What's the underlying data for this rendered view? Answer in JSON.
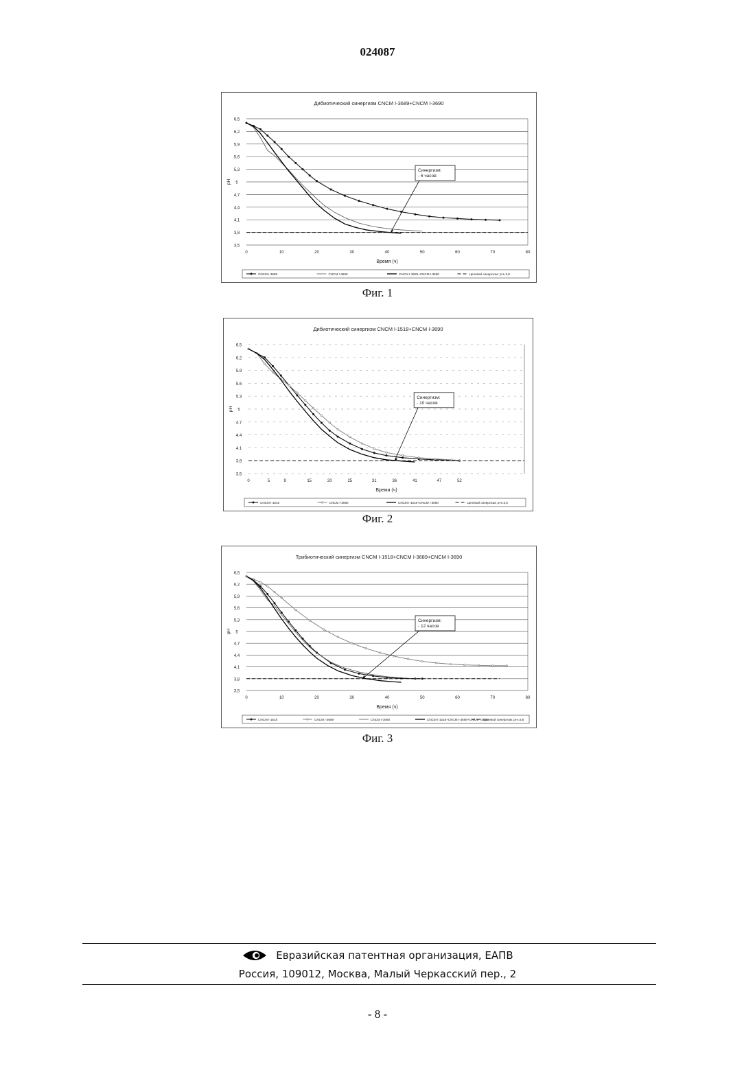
{
  "document_number": "024087",
  "figures": [
    {
      "caption": "Фиг. 1"
    },
    {
      "caption": "Фиг. 2"
    },
    {
      "caption": "Фиг. 3"
    }
  ],
  "chart_data": [
    {
      "type": "line",
      "title": "Дибиотический синергизм CNCM I-3689+CNCM I-3690",
      "xlabel": "Время (ч)",
      "ylabel": "pH",
      "xlim": [
        0,
        80
      ],
      "ylim": [
        3.5,
        6.5
      ],
      "x_ticks": [
        "0",
        "10",
        "20",
        "30",
        "40",
        "50",
        "60",
        "70",
        "80"
      ],
      "y_ticks": [
        "3,5",
        "3,8",
        "4,1",
        "4,4",
        "4,7",
        "5",
        "5,3",
        "5,6",
        "5,9",
        "6,2",
        "6,5"
      ],
      "grid": true,
      "legend_position": "bottom",
      "annotation": {
        "text": [
          "Синергизм:",
          "- 6 часов"
        ],
        "target": {
          "x": 41,
          "y": 3.8
        }
      },
      "series": [
        {
          "name": "CNCM I-3689",
          "style": "solid-markers",
          "x": [
            0,
            2,
            4,
            6,
            8,
            10,
            12,
            14,
            16,
            18,
            20,
            24,
            28,
            32,
            36,
            40,
            44,
            48,
            52,
            56,
            60,
            64,
            68,
            72
          ],
          "y": [
            6.4,
            6.33,
            6.25,
            6.1,
            5.95,
            5.78,
            5.6,
            5.45,
            5.3,
            5.15,
            5.02,
            4.82,
            4.67,
            4.55,
            4.45,
            4.36,
            4.29,
            4.23,
            4.18,
            4.15,
            4.13,
            4.11,
            4.1,
            4.09
          ]
        },
        {
          "name": "CNCM I-3690",
          "style": "thin",
          "x": [
            0,
            2,
            4,
            6,
            8,
            10,
            12,
            14,
            16,
            18,
            20,
            22,
            25,
            28,
            32,
            36,
            40,
            44,
            48,
            50
          ],
          "y": [
            6.4,
            6.3,
            6.05,
            5.75,
            5.62,
            5.45,
            5.28,
            5.1,
            4.92,
            4.76,
            4.6,
            4.45,
            4.28,
            4.15,
            4.02,
            3.94,
            3.89,
            3.86,
            3.84,
            3.83
          ]
        },
        {
          "name": "CNCM I-3689+CNCM I-3690",
          "style": "thick",
          "x": [
            0,
            2,
            4,
            6,
            8,
            10,
            12,
            14,
            16,
            18,
            20,
            22,
            25,
            28,
            31,
            34,
            38,
            42,
            44
          ],
          "y": [
            6.4,
            6.32,
            6.15,
            5.93,
            5.7,
            5.48,
            5.26,
            5.06,
            4.86,
            4.66,
            4.48,
            4.33,
            4.14,
            4.0,
            3.92,
            3.86,
            3.82,
            3.79,
            3.78
          ]
        },
        {
          "name": "Целевой синергизм: pH=3,8",
          "style": "dashed",
          "x": [
            0,
            80
          ],
          "y": [
            3.8,
            3.8
          ]
        }
      ]
    },
    {
      "type": "line",
      "title": "Дибиотический синергизм CNCM I-1518+CNCM I-3690",
      "xlabel": "Время (ч)",
      "ylabel": "pH",
      "xlim": [
        0,
        68
      ],
      "ylim": [
        3.5,
        6.5
      ],
      "x_ticks": [
        "0",
        "5",
        "9",
        "15",
        "20",
        "25",
        "31",
        "36",
        "41",
        "47",
        "52"
      ],
      "y_ticks": [
        "3.5",
        "3.8",
        "4.1",
        "4.4",
        "4.7",
        "5",
        "5.3",
        "5.6",
        "5.9",
        "6.2",
        "6.5"
      ],
      "grid": true,
      "legend_position": "bottom",
      "annotation": {
        "text": [
          "Синергизм:",
          "- 10 часов"
        ],
        "target": {
          "x": 36,
          "y": 3.8
        }
      },
      "series": [
        {
          "name": "CNCM I-1518",
          "style": "solid-markers",
          "x": [
            0,
            2,
            4,
            6,
            8,
            10,
            12,
            14,
            16,
            18,
            20,
            22,
            25,
            28,
            31,
            34,
            38,
            42,
            46,
            50,
            52
          ],
          "y": [
            6.4,
            6.3,
            6.2,
            6.0,
            5.78,
            5.55,
            5.32,
            5.1,
            4.88,
            4.68,
            4.5,
            4.36,
            4.2,
            4.07,
            3.98,
            3.92,
            3.87,
            3.84,
            3.82,
            3.81,
            3.8
          ]
        },
        {
          "name": "CNCM I-3690",
          "style": "thin-markers",
          "x": [
            0,
            2,
            4,
            6,
            8,
            10,
            12,
            14,
            16,
            18,
            20,
            22,
            25,
            28,
            31,
            34,
            38,
            42,
            46,
            50,
            52
          ],
          "y": [
            6.4,
            6.3,
            6.05,
            5.85,
            5.7,
            5.55,
            5.38,
            5.2,
            5.02,
            4.85,
            4.68,
            4.53,
            4.35,
            4.2,
            4.08,
            3.99,
            3.92,
            3.87,
            3.84,
            3.82,
            3.81
          ]
        },
        {
          "name": "CNCM I-1518+CNCM I-3690",
          "style": "thick",
          "x": [
            0,
            2,
            4,
            6,
            8,
            10,
            12,
            14,
            16,
            18,
            20,
            22,
            25,
            28,
            31,
            34,
            38,
            41
          ],
          "y": [
            6.4,
            6.3,
            6.15,
            5.92,
            5.68,
            5.42,
            5.18,
            4.95,
            4.73,
            4.53,
            4.37,
            4.22,
            4.06,
            3.95,
            3.87,
            3.82,
            3.79,
            3.77
          ]
        },
        {
          "name": "Целевой синергизм: pH=3,8",
          "style": "dashed",
          "x": [
            0,
            68
          ],
          "y": [
            3.8,
            3.8
          ]
        }
      ]
    },
    {
      "type": "line",
      "title": "Трибиотический синергизм CNCM I-1518+CNCM I-3689+CNCM I-3690",
      "xlabel": "Время (ч)",
      "ylabel": "pH",
      "xlim": [
        0,
        80
      ],
      "ylim": [
        3.5,
        6.5
      ],
      "x_ticks": [
        "0",
        "10",
        "20",
        "30",
        "40",
        "50",
        "60",
        "70",
        "80"
      ],
      "y_ticks": [
        "3,5",
        "3,8",
        "4,1",
        "4,4",
        "4,7",
        "5",
        "5,3",
        "5,6",
        "5,9",
        "6,2",
        "6,5"
      ],
      "grid": true,
      "legend_position": "bottom",
      "annotation": {
        "text": [
          "Синергизм:",
          "- 12 часов"
        ],
        "target": {
          "x": 33,
          "y": 3.8
        }
      },
      "series": [
        {
          "name": "CNCM I-1518",
          "style": "solid-markers",
          "x": [
            0,
            2,
            4,
            6,
            8,
            10,
            12,
            14,
            16,
            18,
            20,
            24,
            28,
            32,
            36,
            40,
            44,
            48,
            50
          ],
          "y": [
            6.4,
            6.3,
            6.15,
            5.95,
            5.72,
            5.48,
            5.25,
            5.03,
            4.82,
            4.63,
            4.46,
            4.2,
            4.03,
            3.93,
            3.87,
            3.83,
            3.81,
            3.8,
            3.8
          ]
        },
        {
          "name": "CNCM I-3689",
          "style": "thin-markers",
          "x": [
            0,
            2,
            4,
            6,
            8,
            10,
            14,
            18,
            22,
            26,
            30,
            34,
            38,
            42,
            46,
            50,
            54,
            58,
            62,
            66,
            70,
            74
          ],
          "y": [
            6.4,
            6.33,
            6.25,
            6.15,
            6.0,
            5.85,
            5.55,
            5.28,
            5.05,
            4.86,
            4.7,
            4.57,
            4.46,
            4.37,
            4.3,
            4.24,
            4.2,
            4.17,
            4.15,
            4.14,
            4.13,
            4.13
          ]
        },
        {
          "name": "CNCM I-3690",
          "style": "thin",
          "x": [
            0,
            2,
            4,
            6,
            8,
            10,
            12,
            14,
            16,
            18,
            20,
            24,
            28,
            32,
            36,
            40,
            44,
            48,
            50
          ],
          "y": [
            6.4,
            6.28,
            6.05,
            5.8,
            5.65,
            5.42,
            5.2,
            4.98,
            4.78,
            4.6,
            4.45,
            4.22,
            4.07,
            3.97,
            3.9,
            3.85,
            3.82,
            3.8,
            3.8
          ]
        },
        {
          "name": "CNCM I-1518+CNCM I-3689+CNCM I-3690",
          "style": "thick",
          "x": [
            0,
            2,
            4,
            6,
            8,
            10,
            12,
            14,
            16,
            18,
            20,
            23,
            26,
            30,
            34,
            38,
            42,
            44
          ],
          "y": [
            6.4,
            6.3,
            6.1,
            5.85,
            5.58,
            5.32,
            5.08,
            4.86,
            4.66,
            4.48,
            4.32,
            4.14,
            4.0,
            3.88,
            3.8,
            3.75,
            3.72,
            3.71
          ]
        },
        {
          "name": "Целевой синергизм: pH=3,8",
          "style": "dashed",
          "x": [
            0,
            72
          ],
          "y": [
            3.8,
            3.8
          ]
        }
      ]
    }
  ],
  "footer": {
    "org": "Евразийская патентная организация, ЕАПВ",
    "address": "Россия, 109012, Москва, Малый Черкасский пер., 2",
    "logo_icon": "eapo-eye-logo-icon"
  },
  "page_number": "- 8 -"
}
